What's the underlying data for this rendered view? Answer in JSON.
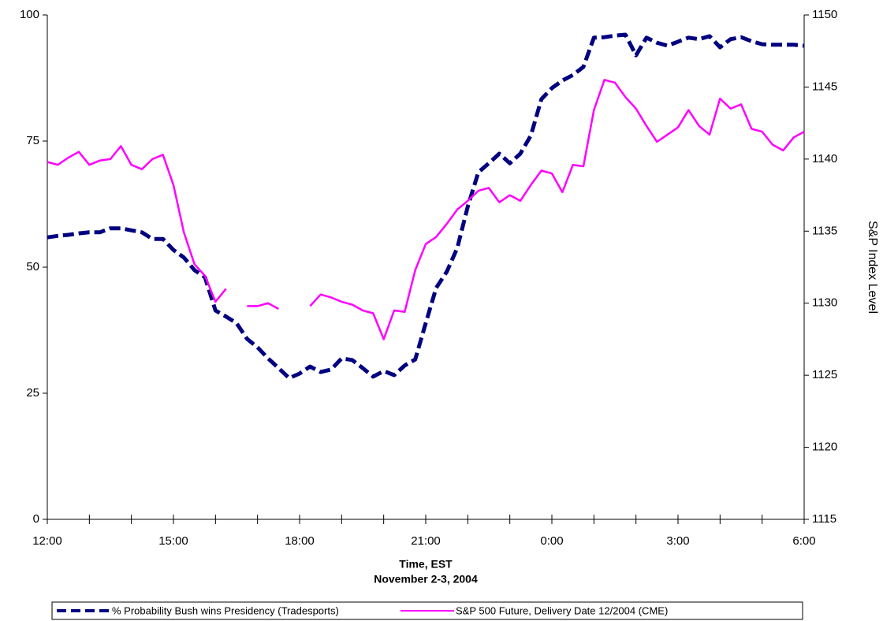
{
  "chart_data": {
    "type": "line",
    "x_label": [
      "Time, EST",
      "November 2-3, 2004"
    ],
    "y2_label": "S&P Index Level",
    "x": [
      0,
      0.25,
      0.5,
      0.75,
      1,
      1.25,
      1.5,
      1.75,
      2,
      2.25,
      2.5,
      2.75,
      3,
      3.25,
      3.5,
      3.75,
      4,
      4.25,
      4.5,
      4.75,
      5,
      5.25,
      5.5,
      5.75,
      6,
      6.25,
      6.5,
      6.75,
      7,
      7.25,
      7.5,
      7.75,
      8,
      8.25,
      8.5,
      8.75,
      9,
      9.25,
      9.5,
      9.75,
      10,
      10.25,
      10.5,
      10.75,
      11,
      11.25,
      11.5,
      11.75,
      12,
      12.25,
      12.5,
      12.75,
      13,
      13.25,
      13.5,
      13.75,
      14,
      14.25,
      14.5,
      14.75,
      15,
      15.25,
      15.5,
      15.75,
      16,
      16.25,
      16.5,
      16.75,
      17,
      17.25,
      17.5,
      17.75,
      18
    ],
    "xlim": [
      0,
      18
    ],
    "xticks": [
      {
        "value": 0,
        "label": "12:00"
      },
      {
        "value": 3,
        "label": "15:00"
      },
      {
        "value": 6,
        "label": "18:00"
      },
      {
        "value": 9,
        "label": "21:00"
      },
      {
        "value": 12,
        "label": "0:00"
      },
      {
        "value": 15,
        "label": "3:00"
      },
      {
        "value": 18,
        "label": "6:00"
      }
    ],
    "xminorticks": [
      1,
      2,
      4,
      5,
      7,
      8,
      10,
      11,
      13,
      14,
      16,
      17
    ],
    "ylim": [
      0,
      100
    ],
    "yticks": [
      0,
      25,
      50,
      75,
      100
    ],
    "y2lim": [
      1115,
      1150
    ],
    "y2ticks": [
      1115,
      1120,
      1125,
      1130,
      1135,
      1140,
      1145,
      1150
    ],
    "grid": false,
    "legend": "bottom",
    "series": [
      {
        "name": "% Probability Bush wins Presidency (Tradesports)",
        "color": "#000080",
        "dashed": true,
        "values": [
          55.9,
          56.2,
          56.4,
          56.7,
          56.9,
          56.9,
          57.7,
          57.7,
          57.3,
          56.9,
          55.6,
          55.6,
          53.4,
          51.9,
          49.4,
          48,
          41.4,
          40.2,
          38.9,
          35.8,
          34.1,
          31.9,
          30,
          28,
          28.9,
          30.3,
          29.2,
          29.7,
          31.9,
          31.6,
          30,
          28.3,
          29.4,
          28.6,
          30.5,
          31.7,
          38.9,
          45.9,
          49.1,
          53.8,
          62,
          68.8,
          70.6,
          72.5,
          70.6,
          72.5,
          76.1,
          83.3,
          85.5,
          87,
          88.1,
          89.7,
          95.5,
          95.6,
          95.9,
          96.1,
          92,
          95.5,
          94.5,
          93.9,
          94.7,
          95.5,
          95.2,
          95.8,
          93.6,
          95.2,
          95.6,
          94.8,
          94.2,
          94.1,
          94.1,
          94.1,
          93.9
        ]
      },
      {
        "name": "S&P 500 Future, Delivery Date 12/2004 (CME)",
        "color": "#ff00ff",
        "dashed": false,
        "axis": "y2",
        "values": [
          1139.8,
          1139.6,
          1140.1,
          1140.5,
          1139.6,
          1139.9,
          1140,
          1140.9,
          1139.6,
          1139.3,
          1140,
          1140.3,
          1138.2,
          1134.9,
          1132.7,
          1131.9,
          1130.1,
          1131,
          null,
          1129.8,
          1129.8,
          1130,
          1129.6,
          null,
          null,
          1129.8,
          1130.6,
          1130.4,
          1130.1,
          1129.9,
          1129.5,
          1129.3,
          1127.5,
          1129.5,
          1129.4,
          1132.3,
          1134.1,
          1134.6,
          1135.5,
          1136.5,
          1137.1,
          1137.8,
          1138,
          1137,
          1137.5,
          1137.1,
          1138.2,
          1139.2,
          1139,
          1137.7,
          1139.6,
          1139.5,
          1143.4,
          1145.5,
          1145.3,
          1144.3,
          1143.5,
          1142.3,
          1141.2,
          1141.7,
          1142.2,
          1143.4,
          1142.3,
          1141.7,
          1144.2,
          1143.5,
          1143.8,
          1142.1,
          1141.9,
          1141,
          1140.6,
          1141.5,
          1141.9
        ]
      }
    ]
  }
}
